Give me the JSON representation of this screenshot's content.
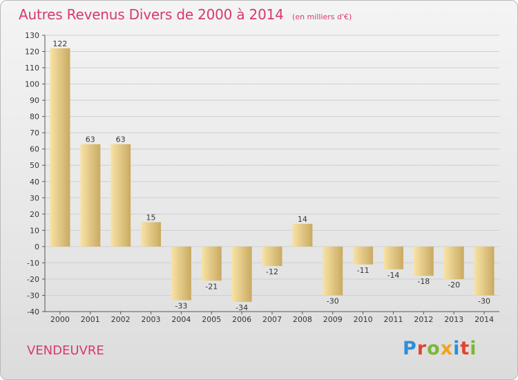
{
  "header": {
    "title": "Autres Revenus Divers de 2000 à 2014",
    "unit": "(en milliers d'€)"
  },
  "footer": {
    "location": "VENDEUVRE",
    "logo_text": "Proxiti"
  },
  "colors": {
    "title": "#d63a6b",
    "bar_light": "#f8e3a6",
    "bar_dark": "#c9aa62",
    "grid": "#cfcfcf"
  },
  "chart_data": {
    "type": "bar",
    "categories": [
      "2000",
      "2001",
      "2002",
      "2003",
      "2004",
      "2005",
      "2006",
      "2007",
      "2008",
      "2009",
      "2010",
      "2011",
      "2012",
      "2013",
      "2014"
    ],
    "values": [
      122,
      63,
      63,
      15,
      -33,
      -21,
      -34,
      -12,
      14,
      -30,
      -11,
      -14,
      -18,
      -20,
      -30
    ],
    "data_labels": [
      "122",
      "63",
      "63",
      "15",
      "-33",
      "-21",
      "-34",
      "-12",
      "14",
      "-30",
      "-11",
      "-14",
      "-18",
      "-20",
      "-30"
    ],
    "ylim": [
      -40,
      130
    ],
    "yticks": [
      -40,
      -30,
      -20,
      -10,
      0,
      10,
      20,
      30,
      40,
      50,
      60,
      70,
      80,
      90,
      100,
      110,
      120,
      130
    ],
    "grid": true,
    "legend": "none"
  }
}
